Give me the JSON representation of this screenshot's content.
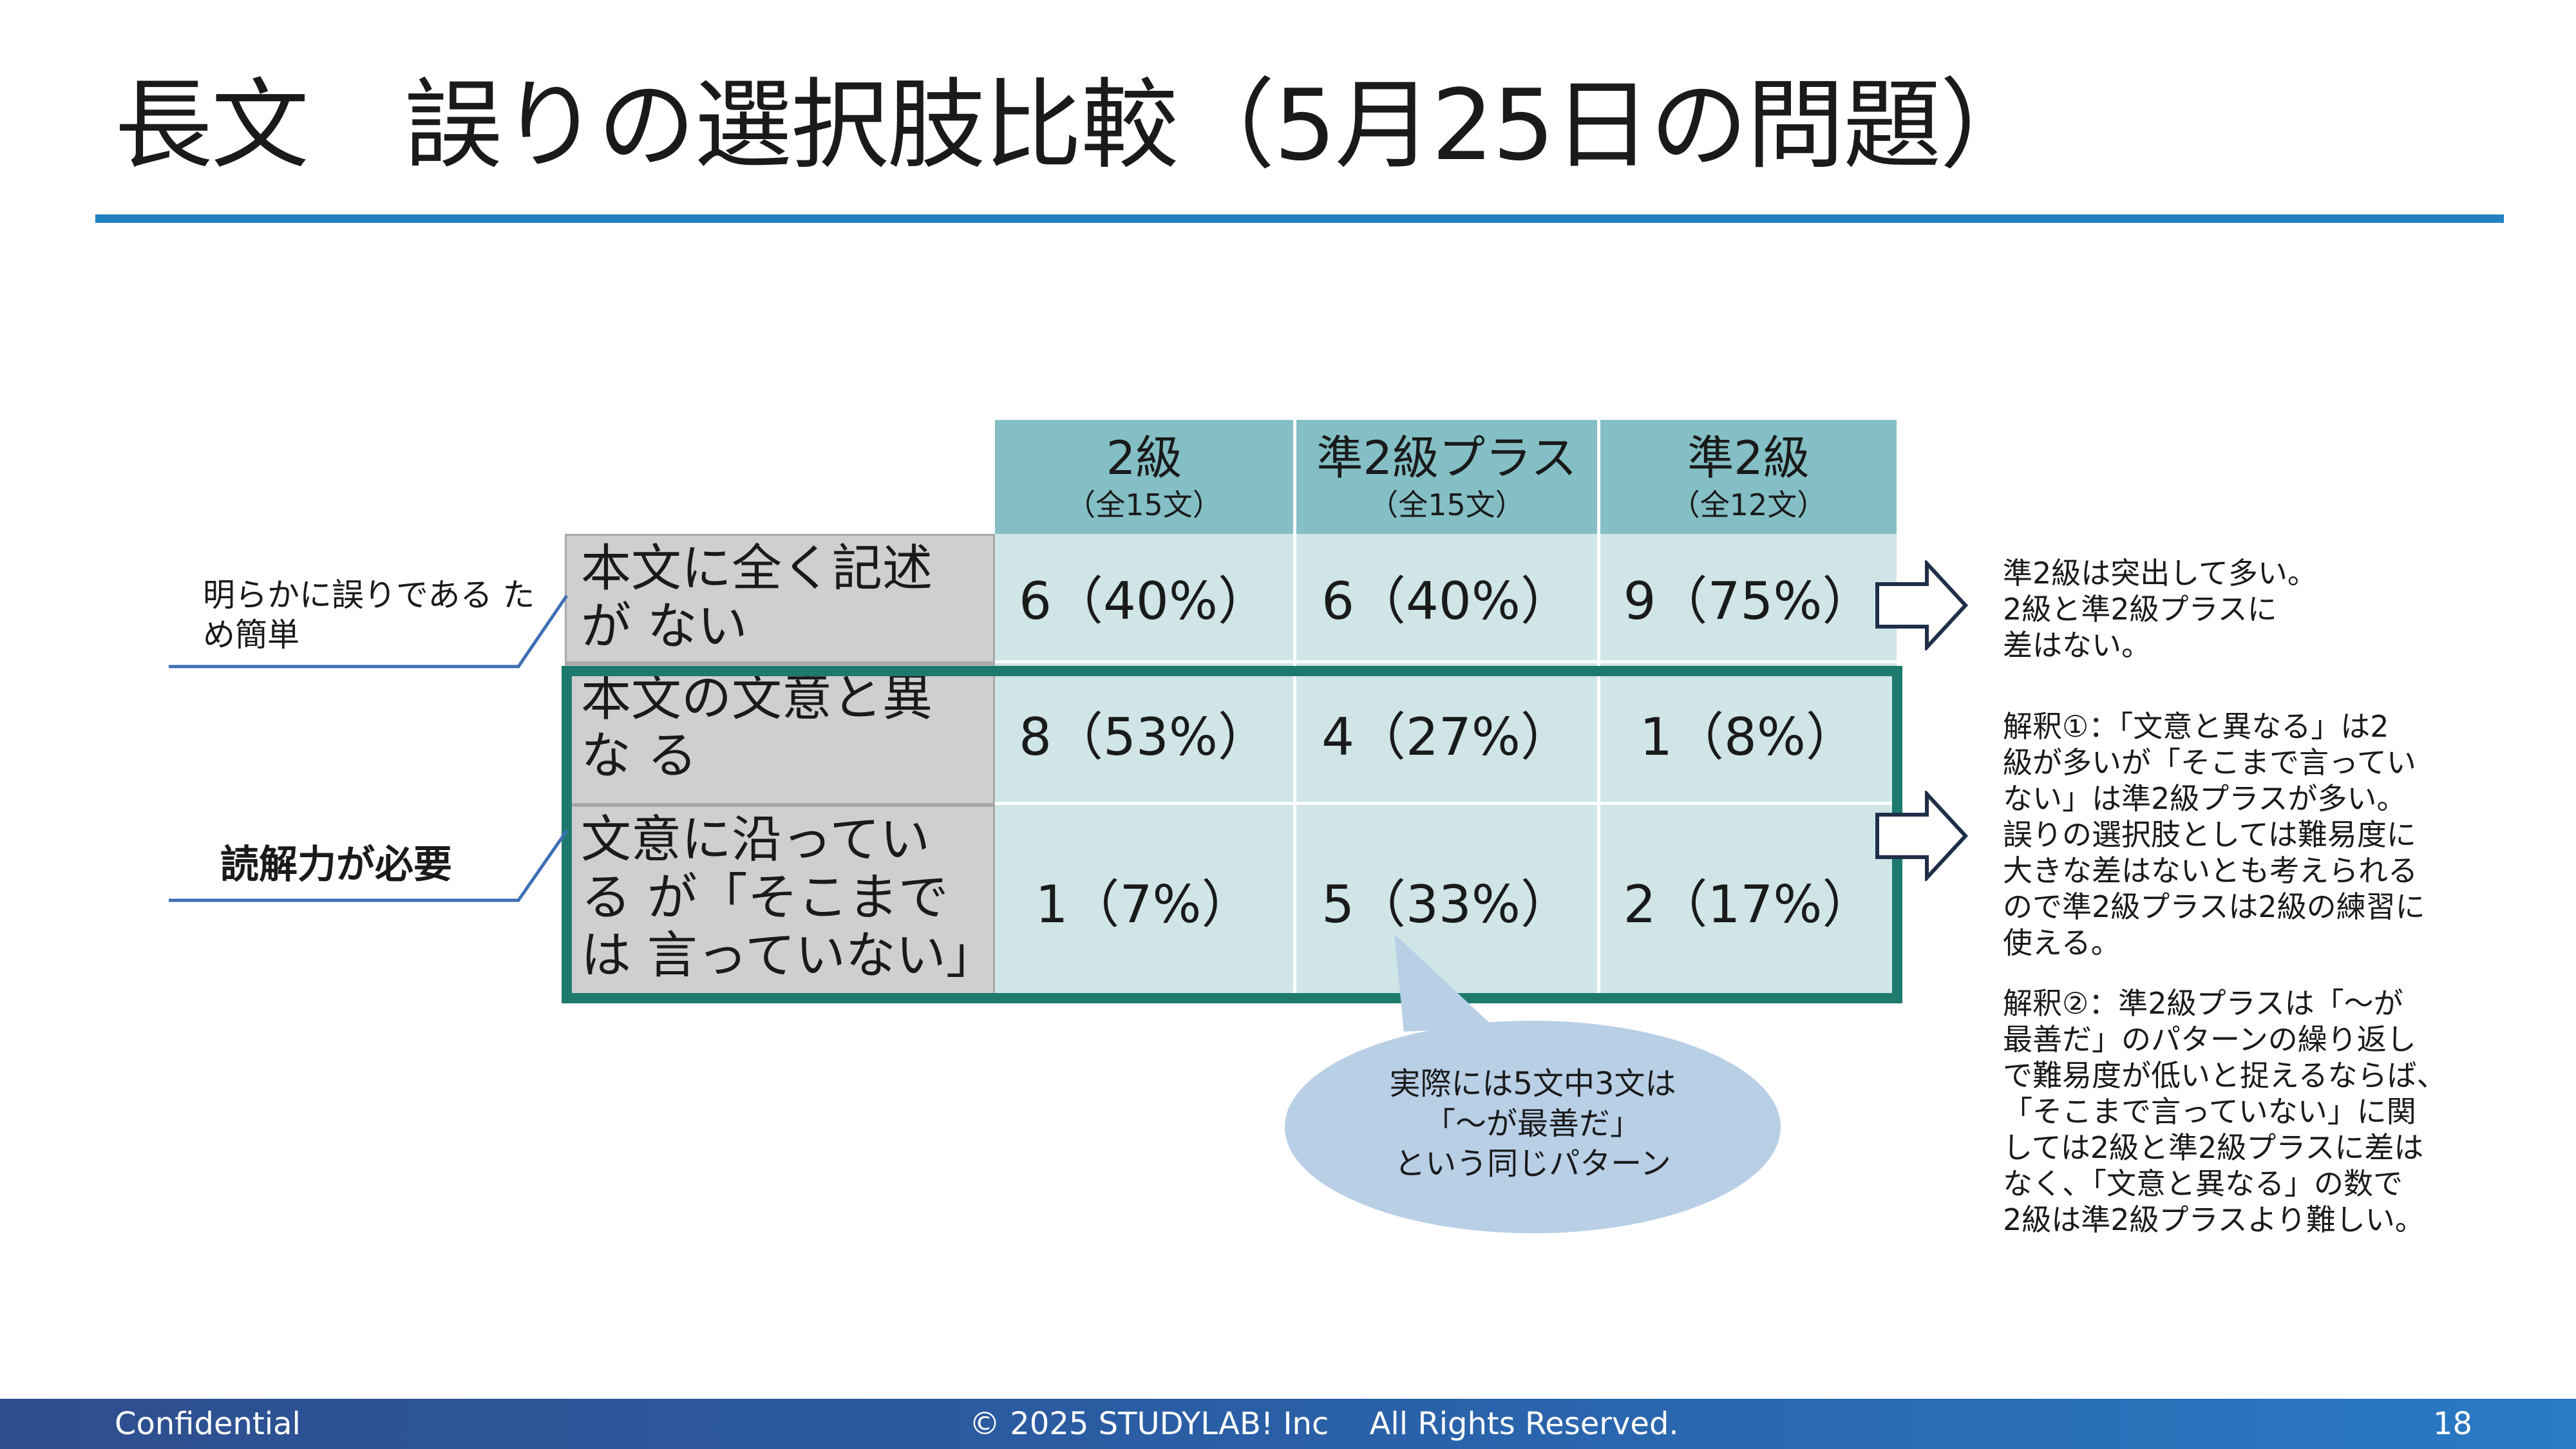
{
  "title": "長文　誤りの選択肢比較（5月25日の問題）",
  "colors": {
    "accent": "#1f7fbf",
    "header": "#84bfc5",
    "cell": "#cfe5e6",
    "rowHeader": "#d0cecf",
    "frame": "#1e7a6e",
    "bubble": "#b8cfe6",
    "footer": "#2a5fa6"
  },
  "table": {
    "columns": [
      {
        "label": "2級",
        "sub": "（全15文）"
      },
      {
        "label": "準2級プラス",
        "sub": "（全15文）"
      },
      {
        "label": "準2級",
        "sub": "（全12文）"
      }
    ],
    "rows": [
      {
        "label": "本文に全く記述が ない",
        "values": [
          "6（40%）",
          "6（40%）",
          "9（75%）"
        ]
      },
      {
        "label": "本文の文意と異な る",
        "values": [
          "8（53%）",
          "4（27%）",
          "1（8%）"
        ]
      },
      {
        "label": "文意に沿っている が「そこまでは 言っていない」",
        "values": [
          "1（7%）",
          "5（33%）",
          "2（17%）"
        ]
      }
    ]
  },
  "left_notes": {
    "easy": "明らかに誤りである ため簡単",
    "reading": "読解力が必要"
  },
  "right_notes": {
    "note1": "準2級は突出して多い。\n2級と準2級プラスに\n差はない。",
    "note2": "解釈①：「文意と異なる」は2\n級が多いが「そこまで言ってい\nない」は準2級プラスが多い。\n誤りの選択肢としては難易度に\n大きな差はないとも考えられる\nので準2級プラスは2級の練習に\n使える。",
    "note3": "解釈②：準2級プラスは「～が\n最善だ」のパターンの繰り返し\nで難易度が低いと捉えるならば、\n「そこまで言っていない」に関\nしては2級と準2級プラスに差は\nなく、「文意と異なる」の数で\n2級は準2級プラスより難しい。"
  },
  "callout": "実際には5文中3文は\n「～が最善だ」\nという同じパターン",
  "footer": {
    "left": "Confidential",
    "center": "© 2025 STUDYLAB! Inc　 All Rights Reserved.",
    "page": "18"
  }
}
